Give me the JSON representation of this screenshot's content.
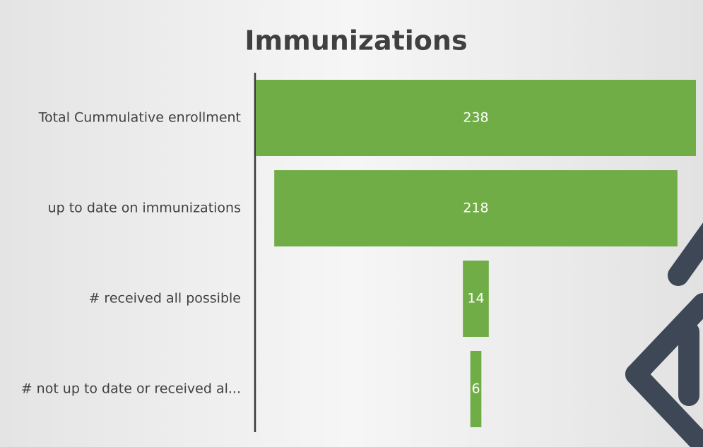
{
  "chart_data": {
    "type": "funnel",
    "title": "Immunizations",
    "categories": [
      "Total Cummulative enrollment",
      "up to date on immunizations",
      "# received all possible",
      "# not up to date or received al..."
    ],
    "values": [
      238,
      218,
      14,
      6
    ],
    "color": "#70ad47"
  }
}
